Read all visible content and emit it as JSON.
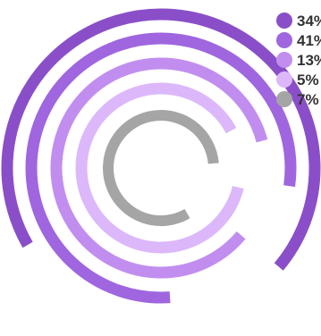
{
  "chart_data": {
    "type": "radial-bar",
    "title": "",
    "legend_position": "top-right",
    "series": [
      {
        "label": "34%",
        "value": 34,
        "color": "#8a4fc8"
      },
      {
        "label": "41%",
        "value": 41,
        "color": "#9f66df"
      },
      {
        "label": "13%",
        "value": 13,
        "color": "#c18ef0"
      },
      {
        "label": "5%",
        "value": 5,
        "color": "#dcb8fa"
      },
      {
        "label": "7%",
        "value": 7,
        "color": "#a5a5a5"
      }
    ]
  }
}
